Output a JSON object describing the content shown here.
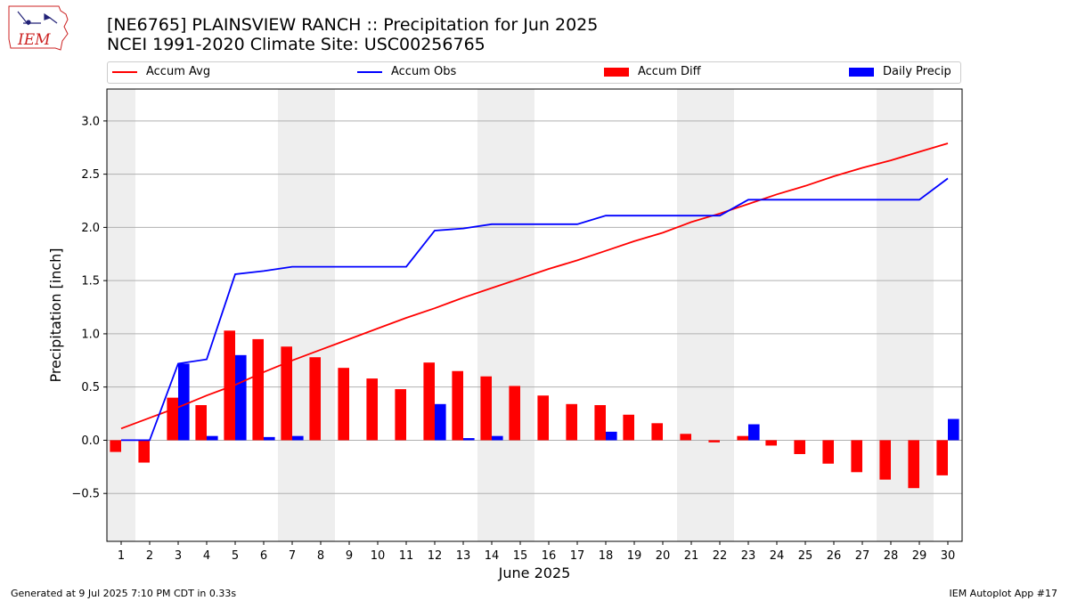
{
  "header": {
    "title_line1": "[NE6765] PLAINSVIEW RANCH :: Precipitation for Jun 2025",
    "title_line2": "NCEI 1991-2020 Climate Site: USC00256765"
  },
  "logo": {
    "text": "IEM"
  },
  "footer": {
    "left": "Generated at 9 Jul 2025 7:10 PM CDT in 0.33s",
    "right": "IEM Autoplot App #17"
  },
  "colors": {
    "avg": "#ff0000",
    "obs": "#0000ff",
    "diff": "#ff0000",
    "daily": "#0000ff",
    "weekend_shade": "#eeeeee",
    "grid": "#b0b0b0"
  },
  "chart_data": {
    "type": "bar",
    "xlabel": "June 2025",
    "ylabel": "Precipitation [inch]",
    "ylim": [
      -0.95,
      3.3
    ],
    "yticks": [
      "−0.5",
      "0.0",
      "0.5",
      "1.0",
      "1.5",
      "2.0",
      "2.5",
      "3.0"
    ],
    "ytick_values": [
      -0.5,
      0.0,
      0.5,
      1.0,
      1.5,
      2.0,
      2.5,
      3.0
    ],
    "x": [
      1,
      2,
      3,
      4,
      5,
      6,
      7,
      8,
      9,
      10,
      11,
      12,
      13,
      14,
      15,
      16,
      17,
      18,
      19,
      20,
      21,
      22,
      23,
      24,
      25,
      26,
      27,
      28,
      29,
      30
    ],
    "xticks": [
      "1",
      "2",
      "3",
      "4",
      "5",
      "6",
      "7",
      "8",
      "9",
      "10",
      "11",
      "12",
      "13",
      "14",
      "15",
      "16",
      "17",
      "18",
      "19",
      "20",
      "21",
      "22",
      "23",
      "24",
      "25",
      "26",
      "27",
      "28",
      "29",
      "30"
    ],
    "shaded_days": [
      1,
      7,
      8,
      14,
      15,
      21,
      22,
      28,
      29
    ],
    "grid": true,
    "legend_position": "top",
    "series": [
      {
        "name": "Accum Avg",
        "kind": "line",
        "values": [
          0.11,
          0.21,
          0.31,
          0.42,
          0.52,
          0.64,
          0.75,
          0.85,
          0.95,
          1.05,
          1.15,
          1.24,
          1.34,
          1.43,
          1.52,
          1.61,
          1.69,
          1.78,
          1.87,
          1.95,
          2.05,
          2.13,
          2.22,
          2.31,
          2.39,
          2.48,
          2.56,
          2.63,
          2.71,
          2.79
        ]
      },
      {
        "name": "Accum Obs",
        "kind": "line",
        "values": [
          0.0,
          0.0,
          0.72,
          0.76,
          1.56,
          1.59,
          1.63,
          1.63,
          1.63,
          1.63,
          1.63,
          1.97,
          1.99,
          2.03,
          2.03,
          2.03,
          2.03,
          2.11,
          2.11,
          2.11,
          2.11,
          2.11,
          2.26,
          2.26,
          2.26,
          2.26,
          2.26,
          2.26,
          2.26,
          2.46
        ]
      },
      {
        "name": "Accum Diff",
        "kind": "bar",
        "values": [
          -0.11,
          -0.21,
          0.4,
          0.33,
          1.03,
          0.95,
          0.88,
          0.78,
          0.68,
          0.58,
          0.48,
          0.73,
          0.65,
          0.6,
          0.51,
          0.42,
          0.34,
          0.33,
          0.24,
          0.16,
          0.06,
          -0.02,
          0.04,
          -0.05,
          -0.13,
          -0.22,
          -0.3,
          -0.37,
          -0.45,
          -0.33
        ]
      },
      {
        "name": "Daily Precip",
        "kind": "bar",
        "values": [
          0,
          0,
          0.72,
          0.04,
          0.8,
          0.03,
          0.04,
          0,
          0,
          0,
          0,
          0.34,
          0.02,
          0.04,
          0,
          0,
          0,
          0.08,
          0,
          0,
          0,
          0,
          0.15,
          0,
          0,
          0,
          0,
          0,
          0,
          0.2
        ]
      }
    ]
  }
}
